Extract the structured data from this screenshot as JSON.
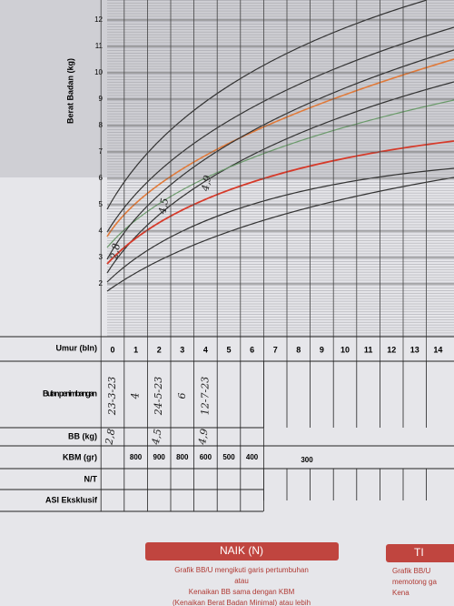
{
  "chart": {
    "y_axis_label": "Berat Badan (kg)",
    "yticks": [
      2,
      3,
      4,
      5,
      6,
      7,
      8,
      9,
      10,
      11,
      12
    ],
    "point_notes": [
      "2,8",
      "4,5",
      "4,9"
    ]
  },
  "table": {
    "header": "Umur (bln)",
    "months": [
      0,
      1,
      2,
      3,
      4,
      5,
      6,
      7,
      8,
      9,
      10,
      11,
      12,
      13,
      14
    ],
    "row_labels": [
      "Bulan penimbangan",
      "BB (kg)",
      "KBM (gr)",
      "N/T",
      "ASI Eksklusif"
    ],
    "dates": [
      "23-3-23",
      "4",
      "24-5-23",
      "6",
      "12-7-23"
    ],
    "weights": [
      "2,8",
      "",
      "4,5",
      "",
      "4,9"
    ],
    "kbm": [
      "",
      "800",
      "900",
      "800",
      "600",
      "500",
      "400"
    ],
    "kbm_rest": "300"
  },
  "legend": {
    "naik": {
      "title": "NAIK (N)",
      "lines": [
        "Grafik BB/U mengikuti garis pertumbuhan",
        "atau",
        "Kenaikan BB sama dengan KBM",
        "(Kenaikan Berat Badan Minimal) atau lebih"
      ]
    },
    "tidak": {
      "title": "TI",
      "lines": [
        "Grafik BB/U",
        "memotong ga",
        "Kena"
      ]
    }
  }
}
